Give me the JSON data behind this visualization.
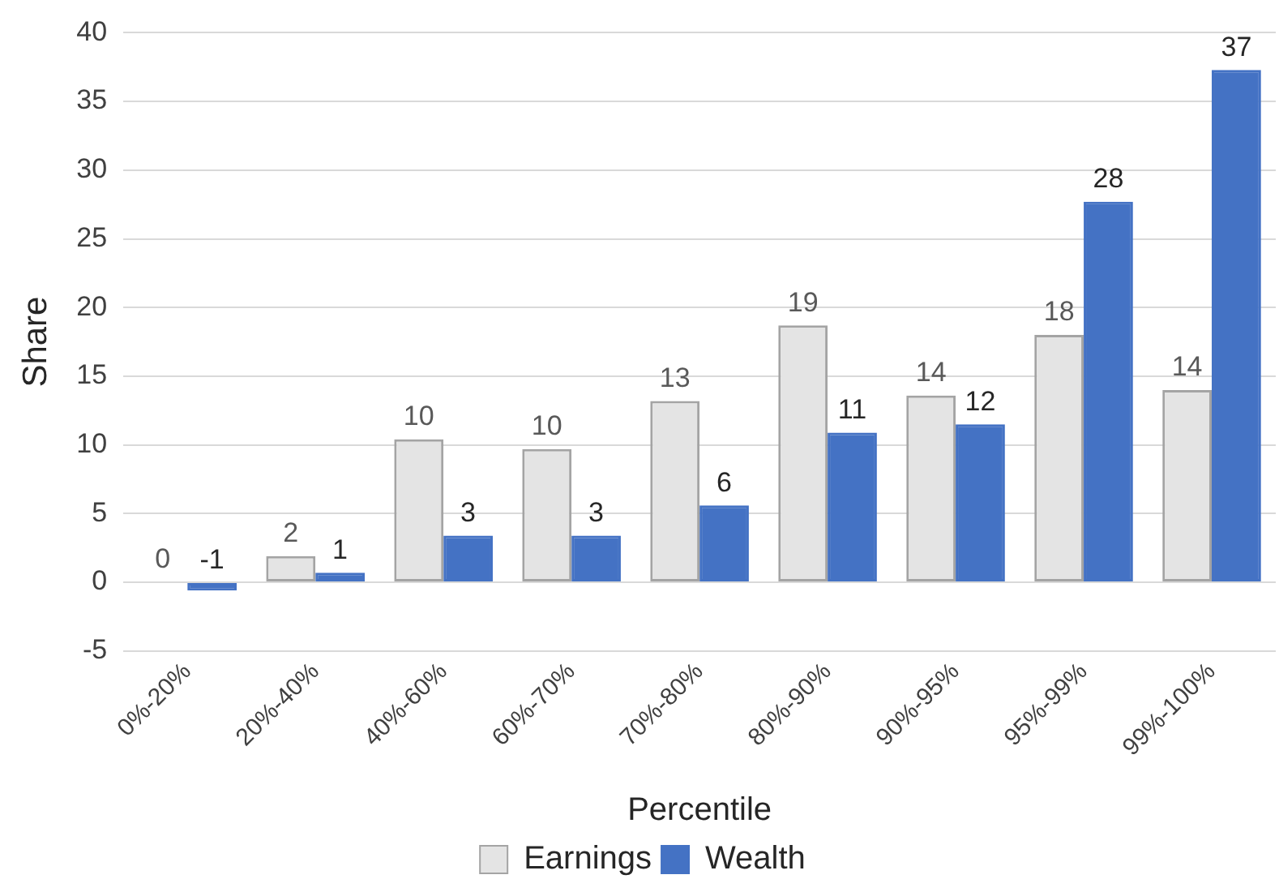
{
  "chart_data": {
    "type": "bar",
    "xlabel": "Percentile",
    "ylabel": "Share",
    "categories": [
      "0%-20%",
      "20%-40%",
      "40%-60%",
      "60%-70%",
      "70%-80%",
      "80%-90%",
      "90%-95%",
      "95%-99%",
      "99%-100%"
    ],
    "series": [
      {
        "name": "Earnings",
        "color": "#e4e4e4",
        "values": [
          0,
          1.9,
          10.4,
          9.7,
          13.2,
          18.7,
          13.6,
          18.0,
          14.0
        ],
        "value_labels": [
          "0",
          "2",
          "10",
          "10",
          "13",
          "19",
          "14",
          "18",
          "14"
        ]
      },
      {
        "name": "Wealth",
        "color": "#4472c4",
        "values": [
          -0.6,
          0.7,
          3.4,
          3.4,
          5.6,
          10.9,
          11.5,
          27.7,
          37.3
        ],
        "value_labels": [
          "-1",
          "1",
          "3",
          "3",
          "6",
          "11",
          "12",
          "28",
          "37"
        ]
      }
    ],
    "ylim": [
      -5,
      40
    ],
    "yticks": [
      -5,
      0,
      5,
      10,
      15,
      20,
      25,
      30,
      35,
      40
    ],
    "grid": "y",
    "legend": "bottom"
  }
}
